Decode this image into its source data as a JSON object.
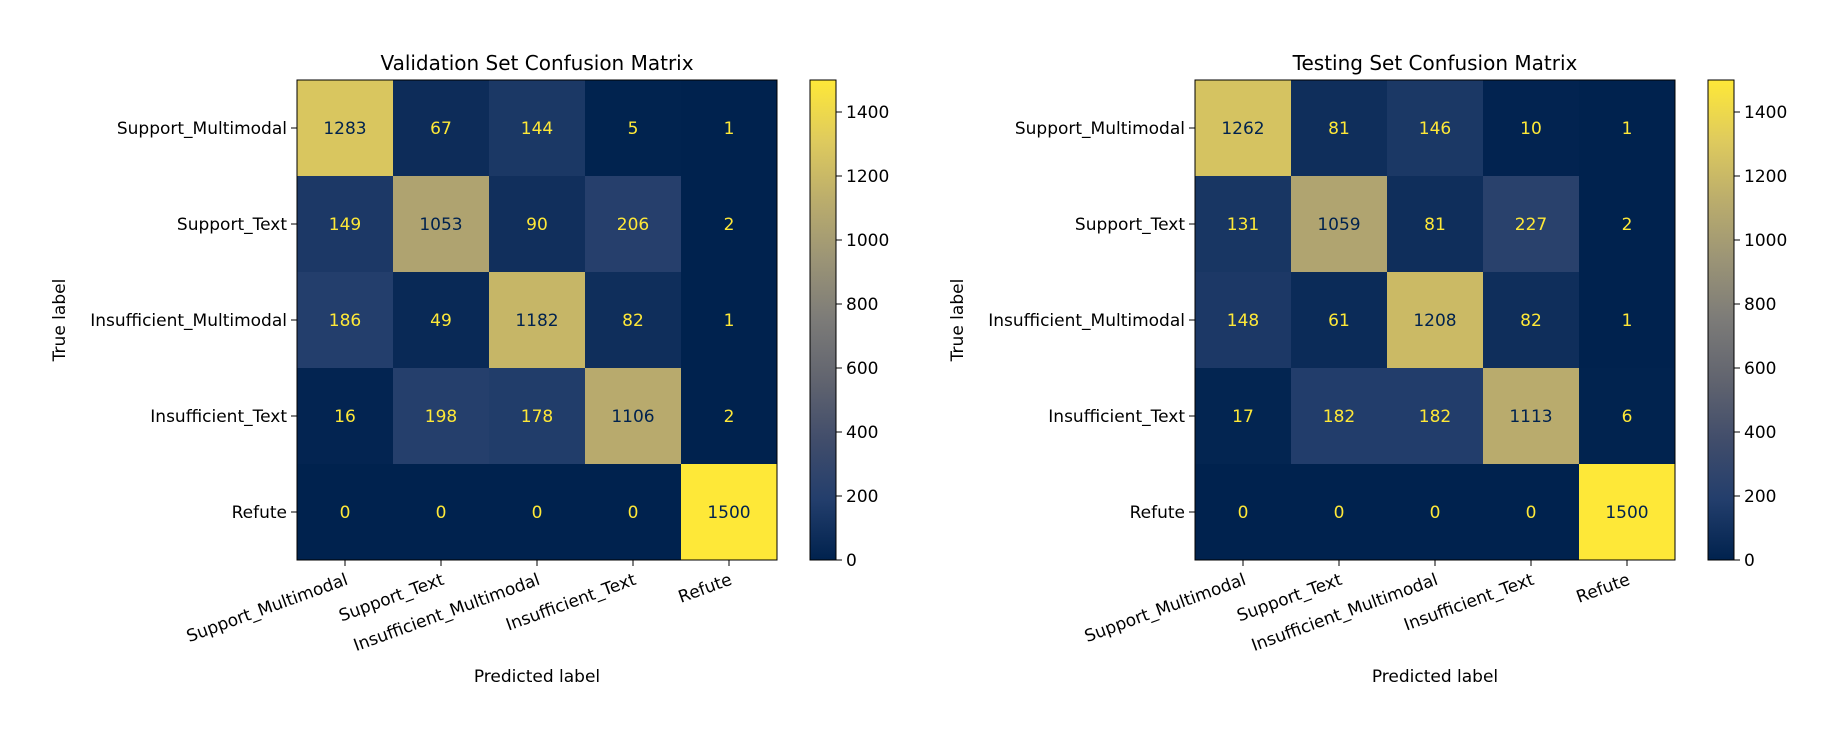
{
  "chart_data": [
    {
      "type": "heatmap",
      "title": "Validation Set Confusion Matrix",
      "xlabel": "Predicted label",
      "ylabel": "True label",
      "x_categories": [
        "Support_Multimodal",
        "Support_Text",
        "Insufficient_Multimodal",
        "Insufficient_Text",
        "Refute"
      ],
      "y_categories": [
        "Support_Multimodal",
        "Support_Text",
        "Insufficient_Multimodal",
        "Insufficient_Text",
        "Refute"
      ],
      "values": [
        [
          1283,
          67,
          144,
          5,
          1
        ],
        [
          149,
          1053,
          90,
          206,
          2
        ],
        [
          186,
          49,
          1182,
          82,
          1
        ],
        [
          16,
          198,
          178,
          1106,
          2
        ],
        [
          0,
          0,
          0,
          0,
          1500
        ]
      ],
      "colormap": "cividis",
      "colorbar_range": [
        0,
        1500
      ],
      "colorbar_ticks": [
        0,
        200,
        400,
        600,
        800,
        1000,
        1200,
        1400
      ]
    },
    {
      "type": "heatmap",
      "title": "Testing Set Confusion Matrix",
      "xlabel": "Predicted label",
      "ylabel": "True label",
      "x_categories": [
        "Support_Multimodal",
        "Support_Text",
        "Insufficient_Multimodal",
        "Insufficient_Text",
        "Refute"
      ],
      "y_categories": [
        "Support_Multimodal",
        "Support_Text",
        "Insufficient_Multimodal",
        "Insufficient_Text",
        "Refute"
      ],
      "values": [
        [
          1262,
          81,
          146,
          10,
          1
        ],
        [
          131,
          1059,
          81,
          227,
          2
        ],
        [
          148,
          61,
          1208,
          82,
          1
        ],
        [
          17,
          182,
          182,
          1113,
          6
        ],
        [
          0,
          0,
          0,
          0,
          1500
        ]
      ],
      "colormap": "cividis",
      "colorbar_range": [
        0,
        1500
      ],
      "colorbar_ticks": [
        0,
        200,
        400,
        600,
        800,
        1000,
        1200,
        1400
      ]
    }
  ],
  "colors": {
    "low": "#00224e",
    "high": "#fee838",
    "text_on_dark": "#fee838",
    "text_on_light": "#00224e",
    "axis": "#000000"
  }
}
